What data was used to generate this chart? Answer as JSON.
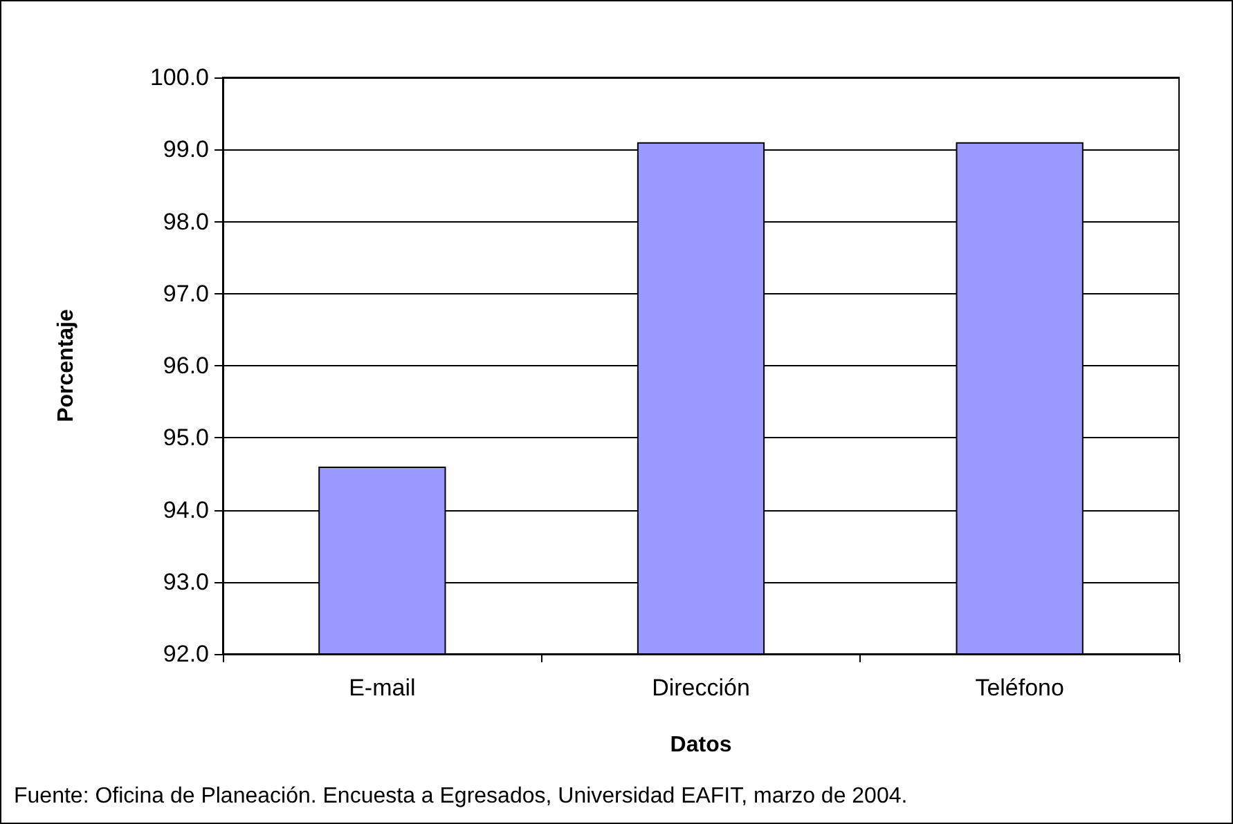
{
  "chart_data": {
    "type": "bar",
    "xlabel": "Datos",
    "ylabel": "Porcentaje",
    "categories": [
      "E-mail",
      "Dirección",
      "Teléfono"
    ],
    "values": [
      94.6,
      99.1,
      99.1
    ],
    "color": "#9999ff",
    "ylim": [
      92,
      100
    ],
    "yticks": [
      {
        "value": 92,
        "label": "92.0"
      },
      {
        "value": 93,
        "label": "93.0"
      },
      {
        "value": 94,
        "label": "94.0"
      },
      {
        "value": 95,
        "label": "95.0"
      },
      {
        "value": 96,
        "label": "96.0"
      },
      {
        "value": 97,
        "label": "97.0"
      },
      {
        "value": 98,
        "label": "98.0"
      },
      {
        "value": 99,
        "label": "99.0"
      },
      {
        "value": 100,
        "label": "100.0"
      }
    ],
    "grid": true,
    "annotations": [
      "Fuente: Oficina de Planeación. Encuesta a Egresados, Universidad EAFIT, marzo de 2004."
    ]
  }
}
